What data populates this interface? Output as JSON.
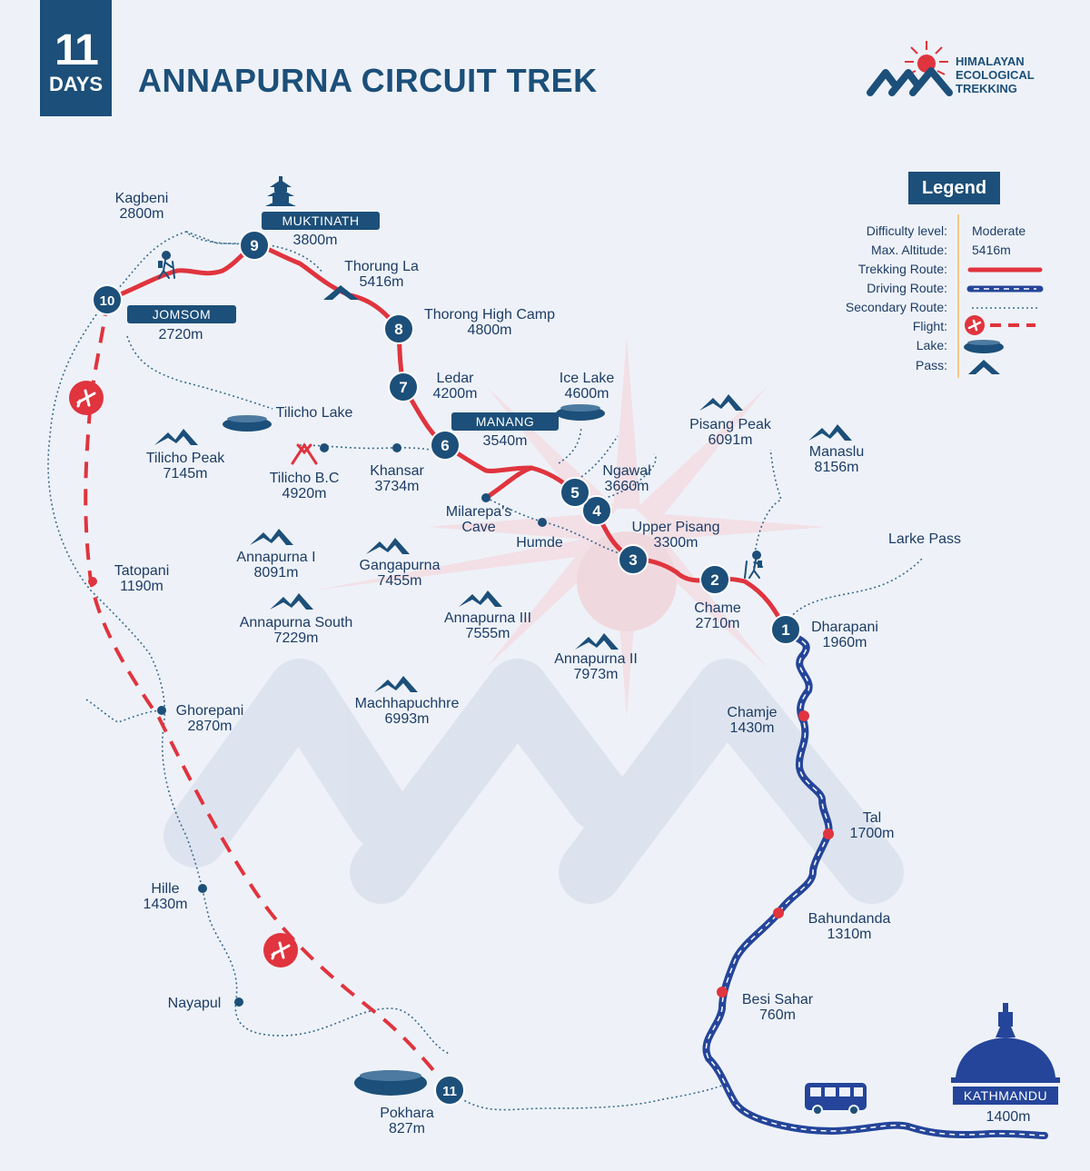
{
  "header": {
    "days_number": "11",
    "days_unit": "DAYS",
    "title": "ANNAPURNA CIRCUIT TREK",
    "brand": [
      "HIMALAYAN",
      "ECOLOGICAL",
      "TREKKING"
    ]
  },
  "colors": {
    "navy": "#1c4f79",
    "trek_red": "#e0343e",
    "drive_blue": "#25459a",
    "background": "#eef2f8"
  },
  "legend": {
    "title": "Legend",
    "rows": [
      {
        "label": "Difficulty level:",
        "value": "Moderate"
      },
      {
        "label": "Max. Altitude:",
        "value": "5416m"
      },
      {
        "label": "Trekking Route:",
        "value": ""
      },
      {
        "label": "Driving Route:",
        "value": ""
      },
      {
        "label": "Secondary Route:",
        "value": ""
      },
      {
        "label": "Flight:",
        "value": ""
      },
      {
        "label": "Lake:",
        "value": ""
      },
      {
        "label": "Pass:",
        "value": ""
      }
    ]
  },
  "stops": [
    {
      "day": "1",
      "name": "Dharapani",
      "alt": "1960m"
    },
    {
      "day": "2",
      "name": "Chame",
      "alt": "2710m"
    },
    {
      "day": "3",
      "name": "Upper Pisang",
      "alt": "3300m"
    },
    {
      "day": "4",
      "name": "Ngawal",
      "alt": "3660m"
    },
    {
      "day": "5",
      "name": "",
      "alt": ""
    },
    {
      "day": "6",
      "name": "MANANG",
      "alt": "3540m"
    },
    {
      "day": "7",
      "name": "Ledar",
      "alt": "4200m"
    },
    {
      "day": "8",
      "name": "Thorong High Camp",
      "alt": "4800m"
    },
    {
      "day": "9",
      "name": "MUKTINATH",
      "alt": "3800m"
    },
    {
      "day": "10",
      "name": "JOMSOM",
      "alt": "2720m"
    },
    {
      "day": "11",
      "name": "Pokhara",
      "alt": "827m"
    }
  ],
  "places": [
    {
      "name": "Kagbeni",
      "alt": "2800m"
    },
    {
      "name": "Thorung La",
      "alt": "5416m"
    },
    {
      "name": "Tilicho Lake",
      "alt": ""
    },
    {
      "name": "Ice Lake",
      "alt": "4600m"
    },
    {
      "name": "Tilicho B.C",
      "alt": "4920m"
    },
    {
      "name": "Khansar",
      "alt": "3734m"
    },
    {
      "name": "Milarepa's Cave",
      "alt": ""
    },
    {
      "name": "Humde",
      "alt": ""
    },
    {
      "name": "Larke Pass",
      "alt": ""
    },
    {
      "name": "Tatopani",
      "alt": "1190m"
    },
    {
      "name": "Ghorepani",
      "alt": "2870m"
    },
    {
      "name": "Hille",
      "alt": "1430m"
    },
    {
      "name": "Nayapul",
      "alt": ""
    },
    {
      "name": "Chamje",
      "alt": "1430m"
    },
    {
      "name": "Tal",
      "alt": "1700m"
    },
    {
      "name": "Bahundanda",
      "alt": "1310m"
    },
    {
      "name": "Besi Sahar",
      "alt": "760m"
    },
    {
      "name": "KATHMANDU",
      "alt": "1400m"
    }
  ],
  "peaks": [
    {
      "name": "Tilicho Peak",
      "alt": "7145m"
    },
    {
      "name": "Pisang Peak",
      "alt": "6091m"
    },
    {
      "name": "Manaslu",
      "alt": "8156m"
    },
    {
      "name": "Annapurna I",
      "alt": "8091m"
    },
    {
      "name": "Gangapurna",
      "alt": "7455m"
    },
    {
      "name": "Annapurna South",
      "alt": "7229m"
    },
    {
      "name": "Annapurna III",
      "alt": "7555m"
    },
    {
      "name": "Annapurna II",
      "alt": "7973m"
    },
    {
      "name": "Machhapuchhre",
      "alt": "6993m"
    }
  ]
}
